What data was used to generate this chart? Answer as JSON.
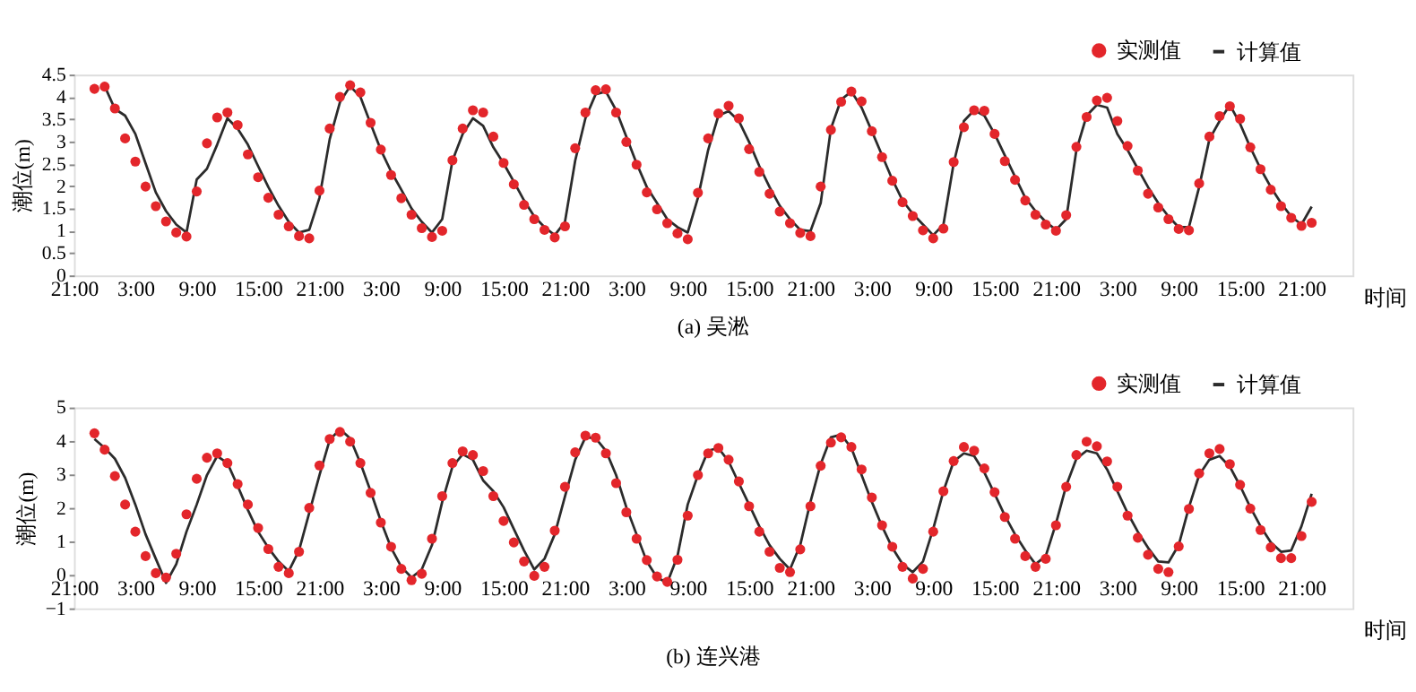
{
  "chart_data": [
    {
      "type": "line",
      "title": "(a) 吴淞",
      "xlabel": "时间",
      "ylabel": "潮位(m)",
      "legend": "top right",
      "grid": false,
      "categories": [
        "21:00",
        null,
        null,
        null,
        null,
        null,
        "3:00",
        null,
        null,
        null,
        null,
        null,
        "9:00",
        null,
        null,
        null,
        null,
        null,
        "15:00",
        null,
        null,
        null,
        null,
        null,
        "21:00",
        null,
        null,
        null,
        null,
        null,
        "3:00",
        null,
        null,
        null,
        null,
        null,
        "9:00",
        null,
        null,
        null,
        null,
        null,
        "15:00",
        null,
        null,
        null,
        null,
        null,
        "21:00",
        null,
        null,
        null,
        null,
        null,
        "3:00",
        null,
        null,
        null,
        null,
        null,
        "9:00",
        null,
        null,
        null,
        null,
        null,
        "15:00",
        null,
        null,
        null,
        null,
        null,
        "21:00",
        null,
        null,
        null,
        null,
        null,
        "3:00",
        null,
        null,
        null,
        null,
        null,
        "9:00",
        null,
        null,
        null,
        null,
        null,
        "15:00",
        null,
        null,
        null,
        null,
        null,
        "21:00",
        null,
        null,
        null,
        null,
        null,
        "3:00",
        null,
        null,
        null,
        null,
        null,
        "9:00",
        null,
        null,
        null,
        null,
        null,
        "15:00",
        null,
        null,
        null,
        null,
        null,
        "21:00",
        null,
        null,
        null,
        null,
        null
      ],
      "ylim": [
        0,
        4.5
      ],
      "yticks": [
        0,
        0.5,
        1,
        1.5,
        2,
        2.5,
        3,
        3.5,
        4,
        4.5
      ],
      "series": [
        {
          "name": "实测值",
          "type": "scatter",
          "marker": "circle",
          "color": "#e3262b",
          "values": [
            null,
            null,
            4.18,
            4.23,
            3.74,
            3.07,
            2.55,
            1.99,
            1.55,
            1.21,
            0.96,
            0.87,
            1.88,
            2.96,
            3.54,
            3.65,
            3.37,
            2.71,
            2.2,
            1.74,
            1.36,
            1.1,
            0.88,
            0.83,
            1.9,
            3.29,
            4.0,
            4.26,
            4.1,
            3.42,
            2.82,
            2.25,
            1.73,
            1.36,
            1.06,
            0.86,
            1.0,
            2.58,
            3.29,
            3.7,
            3.65,
            3.11,
            2.52,
            2.04,
            1.58,
            1.26,
            1.02,
            0.85,
            1.1,
            2.85,
            3.65,
            4.15,
            4.17,
            3.65,
            2.99,
            2.48,
            1.86,
            1.48,
            1.17,
            0.94,
            0.81,
            1.85,
            3.07,
            3.63,
            3.8,
            3.52,
            2.83,
            2.32,
            1.83,
            1.43,
            1.17,
            0.95,
            0.88,
            1.99,
            3.26,
            3.89,
            4.12,
            3.9,
            3.23,
            2.65,
            2.12,
            1.64,
            1.33,
            1.01,
            0.83,
            1.05,
            2.54,
            3.32,
            3.7,
            3.69,
            3.17,
            2.56,
            2.14,
            1.68,
            1.36,
            1.14,
            1.0,
            1.35,
            2.88,
            3.55,
            3.92,
            3.98,
            3.46,
            2.9,
            2.35,
            1.83,
            1.52,
            1.26,
            1.04,
            1.01,
            2.06,
            3.11,
            3.57,
            3.79,
            3.51,
            2.87,
            2.38,
            1.92,
            1.55,
            1.29,
            1.11,
            1.18,
            null,
            null,
            null,
            null
          ]
        },
        {
          "name": "计算值",
          "color": "#2b2b2b",
          "values": [
            null,
            null,
            null,
            4.24,
            3.73,
            3.58,
            3.17,
            2.51,
            1.86,
            1.44,
            1.14,
            0.96,
            2.15,
            2.39,
            2.93,
            3.52,
            3.29,
            2.93,
            2.45,
            1.98,
            1.56,
            1.2,
            0.96,
            1.02,
            1.74,
            3.05,
            3.88,
            4.24,
            4.0,
            3.4,
            2.81,
            2.33,
            1.92,
            1.5,
            1.2,
            0.96,
            1.26,
            2.57,
            3.17,
            3.52,
            3.35,
            2.87,
            2.51,
            2.1,
            1.68,
            1.32,
            1.08,
            0.9,
            1.2,
            2.57,
            3.52,
            4.06,
            4.12,
            3.7,
            3.11,
            2.51,
            1.98,
            1.62,
            1.26,
            1.08,
            0.96,
            1.74,
            2.81,
            3.58,
            3.68,
            3.46,
            2.99,
            2.45,
            1.98,
            1.56,
            1.26,
            1.02,
            0.99,
            1.62,
            3.29,
            3.94,
            4.12,
            3.76,
            3.23,
            2.69,
            2.15,
            1.68,
            1.38,
            1.14,
            0.9,
            1.14,
            2.51,
            3.46,
            3.7,
            3.58,
            3.17,
            2.69,
            2.21,
            1.74,
            1.44,
            1.2,
            1.02,
            1.26,
            2.81,
            3.58,
            3.82,
            3.76,
            3.17,
            2.81,
            2.39,
            1.98,
            1.62,
            1.32,
            1.08,
            1.08,
            1.98,
            3.05,
            3.46,
            3.82,
            3.4,
            2.87,
            2.39,
            1.98,
            1.62,
            1.32,
            1.14,
            1.54,
            null,
            null,
            null,
            null
          ]
        }
      ]
    },
    {
      "type": "line",
      "title": "(b) 连兴港",
      "xlabel": "时间",
      "ylabel": "潮位(m)",
      "legend": "top right",
      "grid": false,
      "categories": [
        "21:00",
        null,
        null,
        null,
        null,
        null,
        "3:00",
        null,
        null,
        null,
        null,
        null,
        "9:00",
        null,
        null,
        null,
        null,
        null,
        "15:00",
        null,
        null,
        null,
        null,
        null,
        "21:00",
        null,
        null,
        null,
        null,
        null,
        "3:00",
        null,
        null,
        null,
        null,
        null,
        "9:00",
        null,
        null,
        null,
        null,
        null,
        "15:00",
        null,
        null,
        null,
        null,
        null,
        "21:00",
        null,
        null,
        null,
        null,
        null,
        "3:00",
        null,
        null,
        null,
        null,
        null,
        "9:00",
        null,
        null,
        null,
        null,
        null,
        "15:00",
        null,
        null,
        null,
        null,
        null,
        "21:00",
        null,
        null,
        null,
        null,
        null,
        "3:00",
        null,
        null,
        null,
        null,
        null,
        "9:00",
        null,
        null,
        null,
        null,
        null,
        "15:00",
        null,
        null,
        null,
        null,
        null,
        "21:00",
        null,
        null,
        null,
        null,
        null,
        "3:00",
        null,
        null,
        null,
        null,
        null,
        "9:00",
        null,
        null,
        null,
        null,
        null,
        "15:00",
        null,
        null,
        null,
        null,
        null,
        "21:00",
        null,
        null,
        null,
        null,
        null
      ],
      "ylim": [
        -1,
        5
      ],
      "yticks": [
        -1,
        0,
        1,
        2,
        3,
        4,
        5
      ],
      "series": [
        {
          "name": "实测值",
          "type": "scatter",
          "marker": "circle",
          "color": "#e3262b",
          "values": [
            null,
            null,
            4.23,
            3.74,
            2.95,
            2.1,
            1.29,
            0.56,
            0.05,
            -0.08,
            0.63,
            1.81,
            2.87,
            3.5,
            3.63,
            3.34,
            2.71,
            2.1,
            1.4,
            0.77,
            0.24,
            0.05,
            0.69,
            2.0,
            3.27,
            4.06,
            4.27,
            3.98,
            3.34,
            2.45,
            1.56,
            0.84,
            0.18,
            -0.16,
            0.03,
            1.08,
            2.35,
            3.34,
            3.69,
            3.58,
            3.1,
            2.35,
            1.61,
            0.97,
            0.4,
            -0.03,
            0.24,
            1.32,
            2.63,
            3.66,
            4.16,
            4.1,
            3.63,
            2.74,
            1.87,
            1.08,
            0.44,
            -0.05,
            -0.21,
            0.45,
            1.77,
            2.98,
            3.63,
            3.79,
            3.44,
            2.79,
            2.05,
            1.29,
            0.69,
            0.21,
            0.08,
            0.76,
            2.05,
            3.26,
            3.95,
            4.11,
            3.82,
            3.15,
            2.31,
            1.48,
            0.84,
            0.24,
            -0.11,
            0.18,
            1.29,
            2.5,
            3.4,
            3.82,
            3.71,
            3.18,
            2.47,
            1.73,
            1.08,
            0.56,
            0.24,
            0.48,
            1.48,
            2.63,
            3.58,
            3.98,
            3.84,
            3.39,
            2.63,
            1.77,
            1.11,
            0.6,
            0.18,
            0.08,
            0.85,
            1.97,
            3.03,
            3.63,
            3.76,
            3.31,
            2.69,
            1.98,
            1.34,
            0.82,
            0.5,
            0.5,
            1.16,
            2.18,
            null,
            null,
            null,
            null
          ]
        },
        {
          "name": "计算值",
          "color": "#2b2b2b",
          "values": [
            null,
            null,
            4.06,
            3.79,
            3.47,
            2.9,
            2.1,
            1.21,
            0.48,
            -0.24,
            0.32,
            1.29,
            2.1,
            2.98,
            3.55,
            3.34,
            2.66,
            1.94,
            1.29,
            0.81,
            0.4,
            0.11,
            0.73,
            1.85,
            2.98,
            4.03,
            4.35,
            4.08,
            3.34,
            2.5,
            1.61,
            0.81,
            0.24,
            -0.08,
            0.16,
            0.89,
            2.18,
            3.23,
            3.6,
            3.44,
            2.82,
            2.5,
            2.02,
            1.37,
            0.73,
            0.16,
            0.48,
            1.21,
            2.34,
            3.44,
            4.11,
            4.08,
            3.71,
            2.98,
            2.02,
            1.21,
            0.4,
            -0.08,
            -0.24,
            0.56,
            2.1,
            2.98,
            3.71,
            3.79,
            3.39,
            2.74,
            2.1,
            1.45,
            0.89,
            0.48,
            0.16,
            0.89,
            2.18,
            3.31,
            4.11,
            4.19,
            3.79,
            2.98,
            2.18,
            1.45,
            0.81,
            0.32,
            0.08,
            0.4,
            1.37,
            2.5,
            3.39,
            3.63,
            3.55,
            3.06,
            2.42,
            1.77,
            1.21,
            0.73,
            0.32,
            0.56,
            1.53,
            2.66,
            3.47,
            3.71,
            3.63,
            3.15,
            2.5,
            1.85,
            1.29,
            0.81,
            0.4,
            0.37,
            0.89,
            2.02,
            2.98,
            3.44,
            3.55,
            3.23,
            2.66,
            2.02,
            1.45,
            0.97,
            0.69,
            0.73,
            1.45,
            2.42,
            null,
            null,
            null,
            null
          ]
        }
      ]
    }
  ]
}
